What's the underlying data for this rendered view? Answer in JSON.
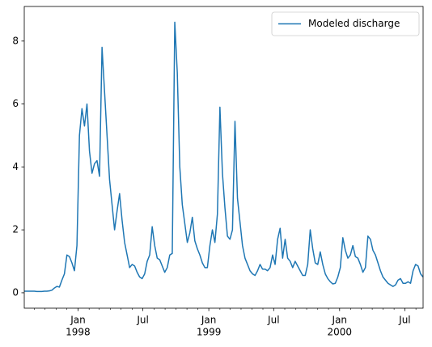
{
  "chart_data": {
    "type": "line",
    "legend": "upper right",
    "x": [
      "1997-08-04",
      "1997-08-11",
      "1997-08-18",
      "1997-08-25",
      "1997-09-01",
      "1997-09-08",
      "1997-09-15",
      "1997-09-22",
      "1997-09-29",
      "1997-10-06",
      "1997-10-13",
      "1997-10-20",
      "1997-10-27",
      "1997-11-03",
      "1997-11-10",
      "1997-11-17",
      "1997-11-24",
      "1997-12-01",
      "1997-12-08",
      "1997-12-15",
      "1997-12-22",
      "1997-12-29",
      "1998-01-05",
      "1998-01-12",
      "1998-01-19",
      "1998-01-26",
      "1998-02-02",
      "1998-02-09",
      "1998-02-16",
      "1998-02-23",
      "1998-03-02",
      "1998-03-09",
      "1998-03-16",
      "1998-03-23",
      "1998-03-30",
      "1998-04-06",
      "1998-04-13",
      "1998-04-20",
      "1998-04-27",
      "1998-05-04",
      "1998-05-11",
      "1998-05-18",
      "1998-05-25",
      "1998-06-01",
      "1998-06-08",
      "1998-06-15",
      "1998-06-22",
      "1998-06-29",
      "1998-07-06",
      "1998-07-13",
      "1998-07-20",
      "1998-07-27",
      "1998-08-03",
      "1998-08-10",
      "1998-08-17",
      "1998-08-24",
      "1998-08-31",
      "1998-09-07",
      "1998-09-14",
      "1998-09-21",
      "1998-09-28",
      "1998-10-05",
      "1998-10-12",
      "1998-10-19",
      "1998-10-26",
      "1998-11-02",
      "1998-11-09",
      "1998-11-16",
      "1998-11-23",
      "1998-11-30",
      "1998-12-07",
      "1998-12-14",
      "1998-12-21",
      "1998-12-28",
      "1999-01-04",
      "1999-01-11",
      "1999-01-18",
      "1999-01-25",
      "1999-02-01",
      "1999-02-08",
      "1999-02-15",
      "1999-02-22",
      "1999-03-01",
      "1999-03-08",
      "1999-03-15",
      "1999-03-22",
      "1999-03-29",
      "1999-04-05",
      "1999-04-12",
      "1999-04-19",
      "1999-04-26",
      "1999-05-03",
      "1999-05-10",
      "1999-05-17",
      "1999-05-24",
      "1999-05-31",
      "1999-06-07",
      "1999-06-14",
      "1999-06-21",
      "1999-06-28",
      "1999-07-05",
      "1999-07-12",
      "1999-07-19",
      "1999-07-26",
      "1999-08-02",
      "1999-08-09",
      "1999-08-16",
      "1999-08-23",
      "1999-08-30",
      "1999-09-06",
      "1999-09-13",
      "1999-09-20",
      "1999-09-27",
      "1999-10-04",
      "1999-10-11",
      "1999-10-18",
      "1999-10-25",
      "1999-11-01",
      "1999-11-08",
      "1999-11-15",
      "1999-11-22",
      "1999-11-29",
      "1999-12-06",
      "1999-12-13",
      "1999-12-20",
      "1999-12-27",
      "2000-01-03",
      "2000-01-10",
      "2000-01-17",
      "2000-01-24",
      "2000-01-31",
      "2000-02-07",
      "2000-02-14",
      "2000-02-21",
      "2000-02-28",
      "2000-03-06",
      "2000-03-13",
      "2000-03-20",
      "2000-03-27",
      "2000-04-03",
      "2000-04-10",
      "2000-04-17",
      "2000-04-24",
      "2000-05-01",
      "2000-05-08",
      "2000-05-15",
      "2000-05-22",
      "2000-05-29",
      "2000-06-05",
      "2000-06-12",
      "2000-06-19",
      "2000-06-26",
      "2000-07-03",
      "2000-07-10",
      "2000-07-17",
      "2000-07-24",
      "2000-07-31",
      "2000-08-07",
      "2000-08-14",
      "2000-08-21"
    ],
    "series": [
      {
        "name": "Modeled discharge",
        "color": "#1f77b4",
        "values": [
          0.05,
          0.05,
          0.05,
          0.05,
          0.05,
          0.04,
          0.04,
          0.04,
          0.05,
          0.05,
          0.06,
          0.08,
          0.15,
          0.2,
          0.18,
          0.4,
          0.6,
          1.2,
          1.15,
          0.95,
          0.7,
          1.5,
          5.0,
          5.85,
          5.3,
          6.0,
          4.5,
          3.8,
          4.1,
          4.2,
          3.7,
          7.8,
          6.4,
          5.0,
          3.6,
          2.8,
          2.0,
          2.6,
          3.15,
          2.3,
          1.6,
          1.2,
          0.8,
          0.9,
          0.85,
          0.65,
          0.5,
          0.45,
          0.6,
          1.0,
          1.2,
          2.1,
          1.5,
          1.1,
          1.05,
          0.85,
          0.65,
          0.8,
          1.2,
          1.25,
          8.6,
          7.0,
          4.0,
          2.8,
          2.2,
          1.6,
          1.9,
          2.4,
          1.65,
          1.4,
          1.2,
          0.95,
          0.8,
          0.8,
          1.5,
          2.0,
          1.6,
          2.5,
          5.9,
          3.8,
          2.7,
          1.8,
          1.7,
          2.0,
          5.45,
          3.0,
          2.25,
          1.5,
          1.1,
          0.9,
          0.7,
          0.6,
          0.55,
          0.7,
          0.9,
          0.75,
          0.75,
          0.7,
          0.8,
          1.2,
          0.9,
          1.7,
          2.05,
          1.1,
          1.7,
          1.1,
          1.0,
          0.8,
          1.0,
          0.85,
          0.7,
          0.55,
          0.55,
          0.9,
          2.0,
          1.4,
          0.95,
          0.9,
          1.3,
          0.9,
          0.6,
          0.45,
          0.35,
          0.28,
          0.3,
          0.5,
          0.8,
          1.75,
          1.35,
          1.1,
          1.2,
          1.5,
          1.15,
          1.1,
          0.9,
          0.65,
          0.8,
          1.8,
          1.7,
          1.35,
          1.2,
          0.95,
          0.7,
          0.5,
          0.4,
          0.3,
          0.25,
          0.2,
          0.25,
          0.4,
          0.45,
          0.3,
          0.3,
          0.35,
          0.3,
          0.7,
          0.9,
          0.85,
          0.6,
          0.5
        ]
      }
    ],
    "xlim": [
      "1997-08-04",
      "2000-08-21"
    ],
    "xticks": [
      {
        "value": "1998-01",
        "label": [
          "Jan",
          "1998"
        ]
      },
      {
        "value": "1998-07",
        "label": [
          "Jul"
        ]
      },
      {
        "value": "1999-01",
        "label": [
          "Jan",
          "1999"
        ]
      },
      {
        "value": "1999-07",
        "label": [
          "Jul"
        ]
      },
      {
        "value": "2000-01",
        "label": [
          "Jan",
          "2000"
        ]
      },
      {
        "value": "2000-07",
        "label": [
          "Jul"
        ]
      }
    ],
    "xminorticks": [
      "1997-09",
      "1997-10",
      "1997-11",
      "1997-12",
      "1998-02",
      "1998-03",
      "1998-04",
      "1998-05",
      "1998-06",
      "1998-08",
      "1998-09",
      "1998-10",
      "1998-11",
      "1998-12",
      "1999-02",
      "1999-03",
      "1999-04",
      "1999-05",
      "1999-06",
      "1999-08",
      "1999-09",
      "1999-10",
      "1999-11",
      "1999-12",
      "2000-02",
      "2000-03",
      "2000-04",
      "2000-05",
      "2000-06",
      "2000-08"
    ],
    "ylim": [
      -0.49,
      9.1
    ],
    "yticks": [
      0,
      2,
      4,
      6,
      8
    ]
  }
}
